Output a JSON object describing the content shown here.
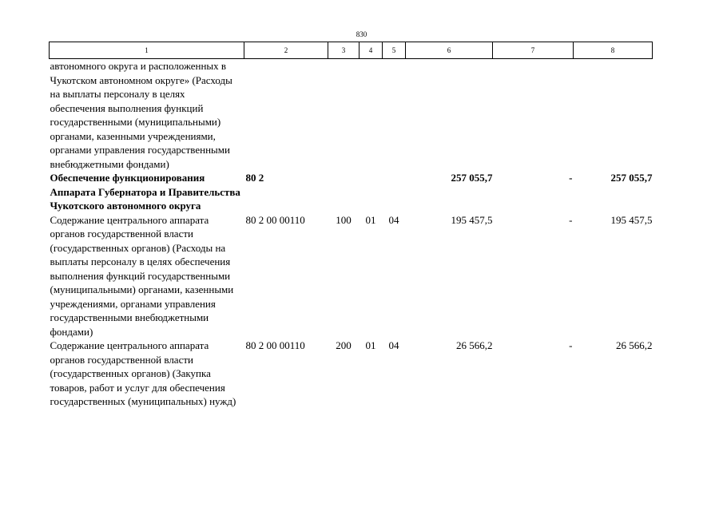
{
  "page_number": "830",
  "header": [
    "1",
    "2",
    "3",
    "4",
    "5",
    "6",
    "7",
    "8"
  ],
  "rows": [
    {
      "name": "автономного округа и расположенных в Чукотском автономном округе» (Расходы на выплаты персоналу в целях обеспечения выполнения функций государственными (муниципальными) органами, казенными учреждениями, органами управления государственными внебюджетными фондами)",
      "code": "",
      "c3": "",
      "c4": "",
      "c5": "",
      "c6": "",
      "c7": "",
      "c8": "",
      "bold": false
    },
    {
      "name": "Обеспечение функционирования Аппарата Губернатора и Правительства Чукотского автономного округа",
      "code": "80 2",
      "c3": "",
      "c4": "",
      "c5": "",
      "c6": "257 055,7",
      "c7": "-",
      "c8": "257 055,7",
      "bold": true
    },
    {
      "name": "Содержание центрального аппарата органов государственной власти (государственных органов) (Расходы на выплаты персоналу в целях обеспечения выполнения функций государственными (муниципальными) органами, казенными учреждениями, органами управления государственными внебюджетными фондами)",
      "code": "80 2 00 00110",
      "c3": "100",
      "c4": "01",
      "c5": "04",
      "c6": "195 457,5",
      "c7": "-",
      "c8": "195 457,5",
      "bold": false
    },
    {
      "name": "Содержание центрального аппарата органов государственной власти (государственных органов) (Закупка товаров, работ и услуг для обеспечения государственных (муниципальных) нужд)",
      "code": "80 2 00 00110",
      "c3": "200",
      "c4": "01",
      "c5": "04",
      "c6": "26 566,2",
      "c7": "-",
      "c8": "26 566,2",
      "bold": false
    }
  ]
}
